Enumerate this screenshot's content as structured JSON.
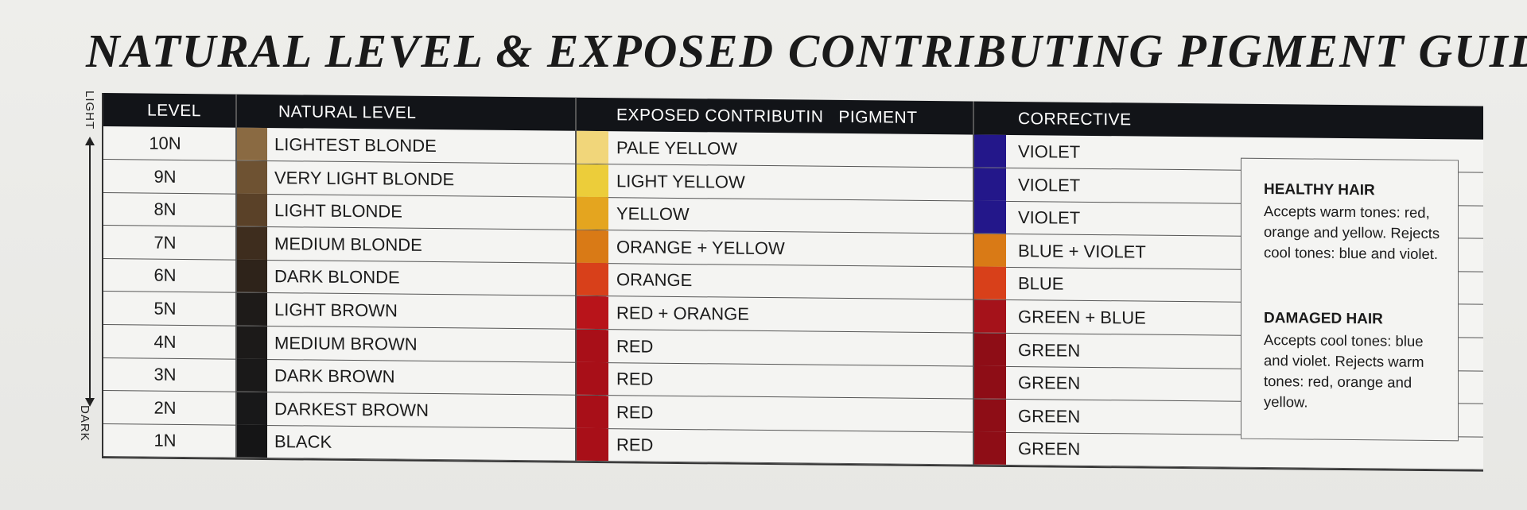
{
  "title": "NATURAL LEVEL & EXPOSED CONTRIBUTING PIGMENT GUIDE",
  "axis": {
    "top_label": "LIGHT",
    "bottom_label": "DARK"
  },
  "headers": {
    "level": "LEVEL",
    "natural": "NATURAL LEVEL",
    "pigment": "EXPOSED CONTRIBUTIN   PIGMENT",
    "corrective": "CORRECTIVE"
  },
  "rows": [
    {
      "level": "10N",
      "natural": "LIGHTEST BLONDE",
      "pigment": "PALE YELLOW",
      "corrective": "VIOLET",
      "nat_color": "#8a6a42",
      "pig_color": "#f1d67a",
      "cor_color": "#23178a"
    },
    {
      "level": "9N",
      "natural": "VERY LIGHT BLONDE",
      "pigment": "LIGHT YELLOW",
      "corrective": "VIOLET",
      "nat_color": "#6e5232",
      "pig_color": "#eccd3a",
      "cor_color": "#23178a"
    },
    {
      "level": "8N",
      "natural": "LIGHT BLONDE",
      "pigment": "YELLOW",
      "corrective": "VIOLET",
      "nat_color": "#5a4128",
      "pig_color": "#e4a51f",
      "cor_color": "#23178a"
    },
    {
      "level": "7N",
      "natural": "MEDIUM BLONDE",
      "pigment": "ORANGE + YELLOW",
      "corrective": "BLUE + VIOLET",
      "nat_color": "#3e2d1e",
      "pig_color": "#d97a16",
      "cor_color": "#d97a16"
    },
    {
      "level": "6N",
      "natural": "DARK BLONDE",
      "pigment": "ORANGE",
      "corrective": "BLUE",
      "nat_color": "#2e231a",
      "pig_color": "#d8401a",
      "cor_color": "#d8401a"
    },
    {
      "level": "5N",
      "natural": "LIGHT BROWN",
      "pigment": "RED + ORANGE",
      "corrective": "GREEN + BLUE",
      "nat_color": "#1e1b19",
      "pig_color": "#b8141a",
      "cor_color": "#a5121a"
    },
    {
      "level": "4N",
      "natural": "MEDIUM BROWN",
      "pigment": "RED",
      "corrective": "GREEN",
      "nat_color": "#1c1a19",
      "pig_color": "#a80f18",
      "cor_color": "#8e0d16"
    },
    {
      "level": "3N",
      "natural": "DARK BROWN",
      "pigment": "RED",
      "corrective": "GREEN",
      "nat_color": "#1a1919",
      "pig_color": "#a80f18",
      "cor_color": "#8e0d16"
    },
    {
      "level": "2N",
      "natural": "DARKEST BROWN",
      "pigment": "RED",
      "corrective": "GREEN",
      "nat_color": "#181819",
      "pig_color": "#a80f18",
      "cor_color": "#8e0d16"
    },
    {
      "level": "1N",
      "natural": "BLACK",
      "pigment": "RED",
      "corrective": "GREEN",
      "nat_color": "#151516",
      "pig_color": "#a80f18",
      "cor_color": "#8e0d16"
    }
  ],
  "notes": {
    "healthy_title": "HEALTHY HAIR",
    "healthy_text": "Accepts warm tones: red, orange and yellow. Rejects cool tones: blue and violet.",
    "damaged_title": "DAMAGED HAIR",
    "damaged_text": "Accepts cool tones: blue and violet. Rejects warm tones: red, orange and yellow."
  }
}
